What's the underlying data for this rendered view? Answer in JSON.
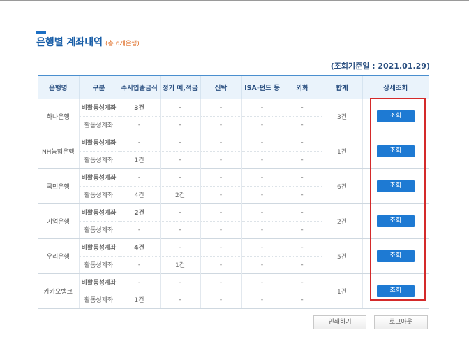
{
  "page": {
    "title": "은행별 계좌내역",
    "subtitle": "(총 6개은행)",
    "reference_date": "(조회기준일 : 2021.01.29)"
  },
  "table": {
    "headers": [
      "은행명",
      "구분",
      "수시입출금식",
      "정기 예,적금",
      "신탁",
      "ISA·펀드 등",
      "외화",
      "합계",
      "상세조회"
    ],
    "banks": [
      {
        "name": "하나은행",
        "total": "3건",
        "view_label": "조회",
        "rows": [
          {
            "kind": "비활동성계좌",
            "values": [
              "3건",
              "-",
              "-",
              "-",
              "-"
            ]
          },
          {
            "kind": "활동성계좌",
            "values": [
              "-",
              "-",
              "-",
              "-",
              "-"
            ]
          }
        ]
      },
      {
        "name": "NH농협은행",
        "total": "1건",
        "view_label": "조회",
        "rows": [
          {
            "kind": "비활동성계좌",
            "values": [
              "-",
              "-",
              "-",
              "-",
              "-"
            ]
          },
          {
            "kind": "활동성계좌",
            "values": [
              "1건",
              "-",
              "-",
              "-",
              "-"
            ]
          }
        ]
      },
      {
        "name": "국민은행",
        "total": "6건",
        "view_label": "조회",
        "rows": [
          {
            "kind": "비활동성계좌",
            "values": [
              "-",
              "-",
              "-",
              "-",
              "-"
            ]
          },
          {
            "kind": "활동성계좌",
            "values": [
              "4건",
              "2건",
              "-",
              "-",
              "-"
            ]
          }
        ]
      },
      {
        "name": "기업은행",
        "total": "2건",
        "view_label": "조회",
        "rows": [
          {
            "kind": "비활동성계좌",
            "values": [
              "2건",
              "-",
              "-",
              "-",
              "-"
            ]
          },
          {
            "kind": "활동성계좌",
            "values": [
              "-",
              "-",
              "-",
              "-",
              "-"
            ]
          }
        ]
      },
      {
        "name": "우리은행",
        "total": "5건",
        "view_label": "조회",
        "rows": [
          {
            "kind": "비활동성계좌",
            "values": [
              "4건",
              "-",
              "-",
              "-",
              "-"
            ]
          },
          {
            "kind": "활동성계좌",
            "values": [
              "-",
              "1건",
              "-",
              "-",
              "-"
            ]
          }
        ]
      },
      {
        "name": "카카오뱅크",
        "total": "1건",
        "view_label": "조회",
        "rows": [
          {
            "kind": "비활동성계좌",
            "values": [
              "-",
              "-",
              "-",
              "-",
              "-"
            ]
          },
          {
            "kind": "활동성계좌",
            "values": [
              "1건",
              "-",
              "-",
              "-",
              "-"
            ]
          }
        ]
      }
    ]
  },
  "buttons": {
    "print_label": "인쇄하기",
    "logout_label": "로그아웃"
  },
  "colors": {
    "accent": "#1e7ad3",
    "title": "#1a5fa8",
    "subtitle": "#e0702a",
    "highlight": "#d42a2a"
  }
}
